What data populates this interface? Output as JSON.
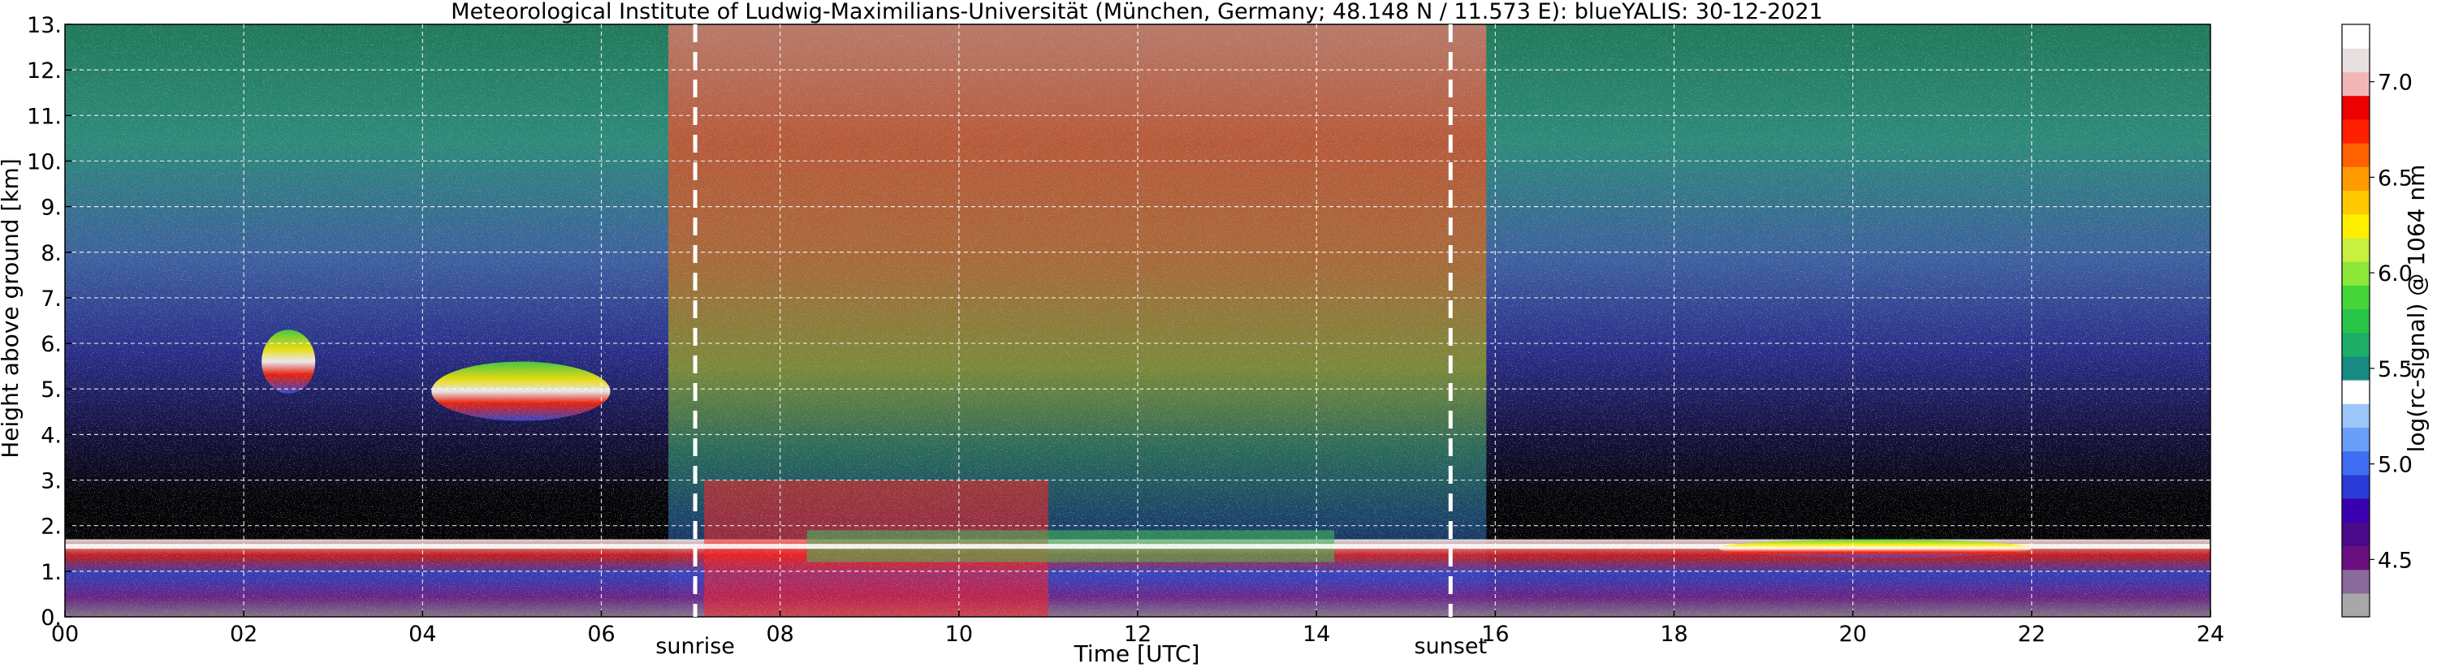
{
  "chart_data": {
    "type": "heatmap",
    "title": "Meteorological Institute of Ludwig-Maximilians-Universität (München, Germany; 48.148 N / 11.573 E):    blueYALIS: 30-12-2021",
    "xlabel": "Time [UTC]",
    "ylabel": "Height above ground [km]",
    "xlim": [
      0,
      24
    ],
    "ylim": [
      0,
      13
    ],
    "x_ticks": [
      0,
      2,
      4,
      6,
      8,
      10,
      12,
      14,
      16,
      18,
      20,
      22,
      24
    ],
    "x_tick_labels": [
      "00",
      "02",
      "04",
      "06",
      "08",
      "10",
      "12",
      "14",
      "16",
      "18",
      "20",
      "22",
      "24"
    ],
    "y_ticks": [
      0,
      1,
      2,
      3,
      4,
      5,
      6,
      7,
      8,
      9,
      10,
      11,
      12,
      13
    ],
    "y_tick_labels": [
      "0.",
      "1.",
      "2.",
      "3.",
      "4.",
      "5.",
      "6.",
      "7.",
      "8.",
      "9.",
      "10.",
      "11.",
      "12.",
      "13."
    ],
    "grid": true,
    "events": [
      {
        "label": "sunrise",
        "time": 7.05
      },
      {
        "label": "sunset",
        "time": 15.5
      }
    ],
    "colorbar": {
      "label": "log(rc-signal) @ 1064 nm",
      "min": 4.2,
      "max": 7.3,
      "ticks": [
        4.5,
        5.0,
        5.5,
        6.0,
        6.5,
        7.0
      ],
      "tick_labels": [
        "4.5",
        "5.0",
        "5.5",
        "6.0",
        "6.5",
        "7.0"
      ],
      "colors": [
        "#a8a8a8",
        "#8a6a9a",
        "#6a0f80",
        "#4a0a8a",
        "#3a00b0",
        "#2a3ad8",
        "#3f6ef2",
        "#6a9ef8",
        "#9cc6fa",
        "#ffffff",
        "#168a83",
        "#1fae68",
        "#27c448",
        "#46d63a",
        "#8ee83a",
        "#c8f040",
        "#fff000",
        "#ffc800",
        "#ff9a00",
        "#ff6000",
        "#ff2000",
        "#ef0000",
        "#f3b6b6",
        "#e8e0e0",
        "#ffffff"
      ]
    },
    "layers": [
      {
        "name": "boundary layer",
        "x_start": 0,
        "x_end": 24,
        "height_km": [
          0,
          1.6
        ]
      },
      {
        "name": "cloud",
        "x_start": 2.2,
        "x_end": 2.8,
        "height_km": [
          4.9,
          6.3
        ]
      },
      {
        "name": "cloud",
        "x_start": 4.1,
        "x_end": 6.1,
        "height_km": [
          4.3,
          5.6
        ]
      },
      {
        "name": "cloud",
        "x_start": 18.5,
        "x_end": 22,
        "height_km": [
          1.3,
          1.7
        ]
      }
    ]
  }
}
